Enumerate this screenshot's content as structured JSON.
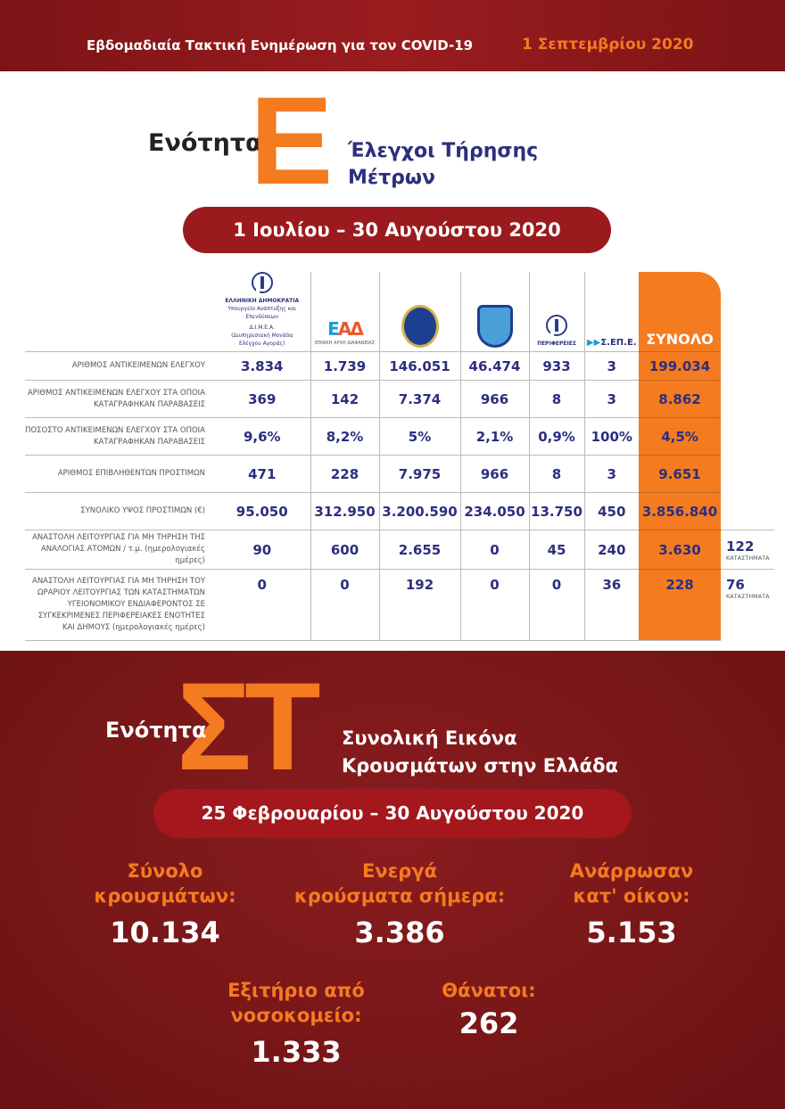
{
  "header": {
    "title": "Εβδομαδιαία Τακτική Ενημέρωση για τον COVID-19",
    "date": "1 Σεπτεμβρίου 2020"
  },
  "section_e": {
    "prefix": "Ενότητα",
    "letter": "Ε",
    "title_line1": "Έλεγχοι Τήρησης",
    "title_line2": "Μέτρων",
    "period": "1 Ιουλίου – 30 Αυγούστου 2020"
  },
  "table": {
    "columns": [
      {
        "lines": [
          "ΕΛΛΗΝΙΚΗ ΔΗΜΟΚΡΑΤΙΑ",
          "Υπουργείο Ανάπτυξης και Επενδύσεων",
          "Δ.Ι.Μ.Ε.Α.",
          "(Διυπηρεσιακή Μονάδα",
          "Ελέγχου Αγοράς)"
        ],
        "icon": "greek-emblem-icon"
      },
      {
        "logo_text": "ΕΑΔ",
        "caption": "ΕΘΝΙΚΗ ΑΡΧΗ ΔΙΑΦΑΝΕΙΑΣ",
        "icon": "ead-logo-icon"
      },
      {
        "logo_text": "ΕΛΛΗΝΙΚΗ ΑΣΤΥΝΟΜΙΑ",
        "icon": "police-badge-icon"
      },
      {
        "logo_text": "ΛΙΜΕΝΙΚΟ ΣΩΜΑ",
        "icon": "coast-guard-shield-icon"
      },
      {
        "caption": "ΠΕΡΙΦΕΡΕΙΕΣ",
        "icon": "greek-emblem-icon"
      },
      {
        "logo_text": "Σ.ΕΠ.Ε.",
        "icon": "sepe-logo-icon"
      },
      {
        "label": "ΣΥΝΟΛΟ"
      }
    ],
    "rows": [
      {
        "label": "ΑΡΙΘΜΟΣ ΑΝΤΙΚΕΙΜΕΝΩΝ ΕΛΕΓΧΟΥ",
        "values": [
          "3.834",
          "1.739",
          "146.051",
          "46.474",
          "933",
          "3"
        ],
        "total": "199.034"
      },
      {
        "label": "ΑΡΙΘΜΟΣ ΑΝΤΙΚΕΙΜΕΝΩΝ ΕΛΕΓΧΟΥ ΣΤΑ ΟΠΟΙΑ ΚΑΤΑΓΡΑΦΗΚΑΝ ΠΑΡΑΒΑΣΕΙΣ",
        "values": [
          "369",
          "142",
          "7.374",
          "966",
          "8",
          "3"
        ],
        "total": "8.862"
      },
      {
        "label": "ΠΟΣΟΣΤΟ ΑΝΤΙΚΕΙΜΕΝΩΝ ΕΛΕΓΧΟΥ ΣΤΑ ΟΠΟΙΑ ΚΑΤΑΓΡΑΦΗΚΑΝ ΠΑΡΑΒΑΣΕΙΣ",
        "values": [
          "9,6%",
          "8,2%",
          "5%",
          "2,1%",
          "0,9%",
          "100%"
        ],
        "total": "4,5%"
      },
      {
        "label": "ΑΡΙΘΜΟΣ ΕΠΙΒΛΗΘΕΝΤΩΝ ΠΡΟΣΤΙΜΩΝ",
        "values": [
          "471",
          "228",
          "7.975",
          "966",
          "8",
          "3"
        ],
        "total": "9.651"
      },
      {
        "label": "ΣΥΝΟΛΙΚΟ ΥΨΟΣ ΠΡΟΣΤΙΜΩΝ (€)",
        "values": [
          "95.050",
          "312.950",
          "3.200.590",
          "234.050",
          "13.750",
          "450"
        ],
        "total": "3.856.840"
      },
      {
        "label": "ΑΝΑΣΤΟΛΗ ΛΕΙΤΟΥΡΓΙΑΣ ΓΙΑ ΜΗ ΤΗΡΗΣΗ ΤΗΣ ΑΝΑΛΟΓΙΑΣ ΑΤΟΜΩΝ / τ.μ. (ημερολογιακές ημέρες)",
        "values": [
          "90",
          "600",
          "2.655",
          "0",
          "45",
          "240"
        ],
        "total": "3.630",
        "note_value": "122",
        "note_label": "ΚΑΤΑΣΤΗΜΑΤΑ"
      },
      {
        "label": "ΑΝΑΣΤΟΛΗ ΛΕΙΤΟΥΡΓΙΑΣ ΓΙΑ ΜΗ ΤΗΡΗΣΗ ΤΟΥ ΩΡΑΡΙΟΥ ΛΕΙΤΟΥΡΓΙΑΣ ΤΩΝ ΚΑΤΑΣΤΗΜΑΤΩΝ ΥΓΕΙΟΝΟΜΙΚΟΥ ΕΝΔΙΑΦΕΡΟΝΤΟΣ ΣΕ ΣΥΓΚΕΚΡΙΜΕΝΕΣ ΠΕΡΙΦΕΡΕΙΑΚΕΣ ΕΝΟΤΗΤΕΣ ΚΑΙ ΔΗΜΟΥΣ (ημερολογιακές ημέρες)",
        "values": [
          "0",
          "0",
          "192",
          "0",
          "0",
          "36"
        ],
        "total": "228",
        "note_value": "76",
        "note_label": "ΚΑΤΑΣΤΗΜΑΤΑ"
      }
    ]
  },
  "section_st": {
    "prefix": "Ενότητα",
    "letter": "ΣΤ",
    "title_line1": "Συνολική Εικόνα",
    "title_line2": "Κρουσμάτων στην Ελλάδα",
    "period": "25 Φεβρουαρίου – 30 Αυγούστου 2020",
    "stats": [
      {
        "label_line1": "Σύνολο",
        "label_line2": "κρουσμάτων:",
        "value": "10.134"
      },
      {
        "label_line1": "Ενεργά",
        "label_line2": "κρούσματα σήμερα:",
        "value": "3.386"
      },
      {
        "label_line1": "Ανάρρωσαν",
        "label_line2": "κατ' οίκον:",
        "value": "5.153"
      },
      {
        "label_line1": "Εξιτήριο από",
        "label_line2": "νοσοκομείο:",
        "value": "1.333"
      },
      {
        "label_line1": "Θάνατοι:",
        "label_line2": "",
        "value": "262"
      }
    ]
  },
  "colors": {
    "dark_red": "#8a1c1e",
    "orange": "#f47b20",
    "navy": "#2b2f7e"
  }
}
